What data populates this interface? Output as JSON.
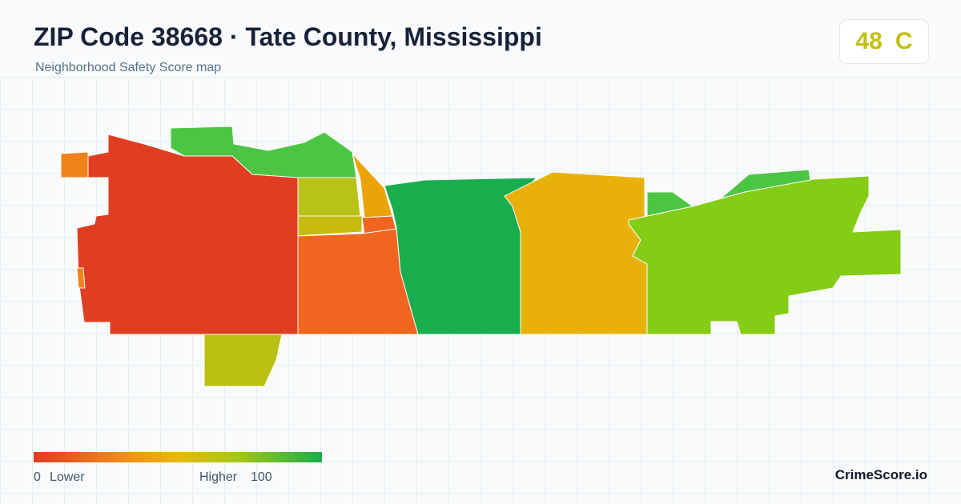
{
  "header": {
    "title": "ZIP Code 38668 · Tate County, Mississippi",
    "subtitle": "Neighborhood Safety Score map"
  },
  "score": {
    "value": 48,
    "grade": "C"
  },
  "legend": {
    "min": 0,
    "min_label": "Lower",
    "max_label": "Higher",
    "max": 100
  },
  "brand": "CrimeScore.io"
}
